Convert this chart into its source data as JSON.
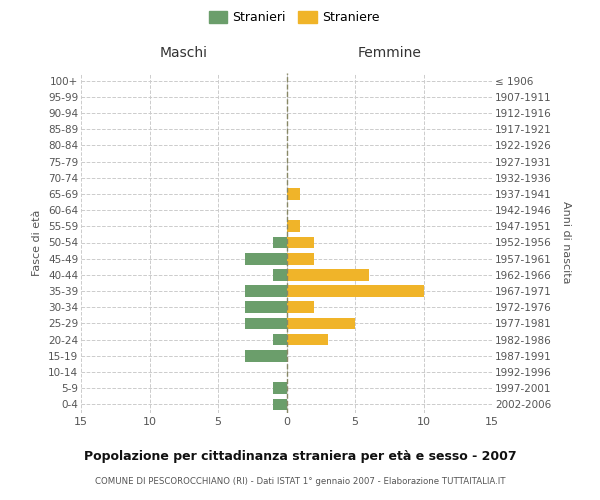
{
  "age_groups": [
    "0-4",
    "5-9",
    "10-14",
    "15-19",
    "20-24",
    "25-29",
    "30-34",
    "35-39",
    "40-44",
    "45-49",
    "50-54",
    "55-59",
    "60-64",
    "65-69",
    "70-74",
    "75-79",
    "80-84",
    "85-89",
    "90-94",
    "95-99",
    "100+"
  ],
  "birth_years": [
    "2002-2006",
    "1997-2001",
    "1992-1996",
    "1987-1991",
    "1982-1986",
    "1977-1981",
    "1972-1976",
    "1967-1971",
    "1962-1966",
    "1957-1961",
    "1952-1956",
    "1947-1951",
    "1942-1946",
    "1937-1941",
    "1932-1936",
    "1927-1931",
    "1922-1926",
    "1917-1921",
    "1912-1916",
    "1907-1911",
    "≤ 1906"
  ],
  "maschi": [
    1,
    1,
    0,
    3,
    1,
    3,
    3,
    3,
    1,
    3,
    1,
    0,
    0,
    0,
    0,
    0,
    0,
    0,
    0,
    0,
    0
  ],
  "femmine": [
    0,
    0,
    0,
    0,
    3,
    5,
    2,
    10,
    6,
    2,
    2,
    1,
    0,
    1,
    0,
    0,
    0,
    0,
    0,
    0,
    0
  ],
  "maschi_color": "#6b9e6b",
  "femmine_color": "#f0b429",
  "title": "Popolazione per cittadinanza straniera per età e sesso - 2007",
  "subtitle": "COMUNE DI PESCOROCCHIANO (RI) - Dati ISTAT 1° gennaio 2007 - Elaborazione TUTTAITALIA.IT",
  "xlabel_left": "Maschi",
  "xlabel_right": "Femmine",
  "ylabel_left": "Fasce di età",
  "ylabel_right": "Anni di nascita",
  "legend_maschi": "Stranieri",
  "legend_femmine": "Straniere",
  "xlim": 15,
  "background_color": "#ffffff",
  "grid_color": "#cccccc"
}
